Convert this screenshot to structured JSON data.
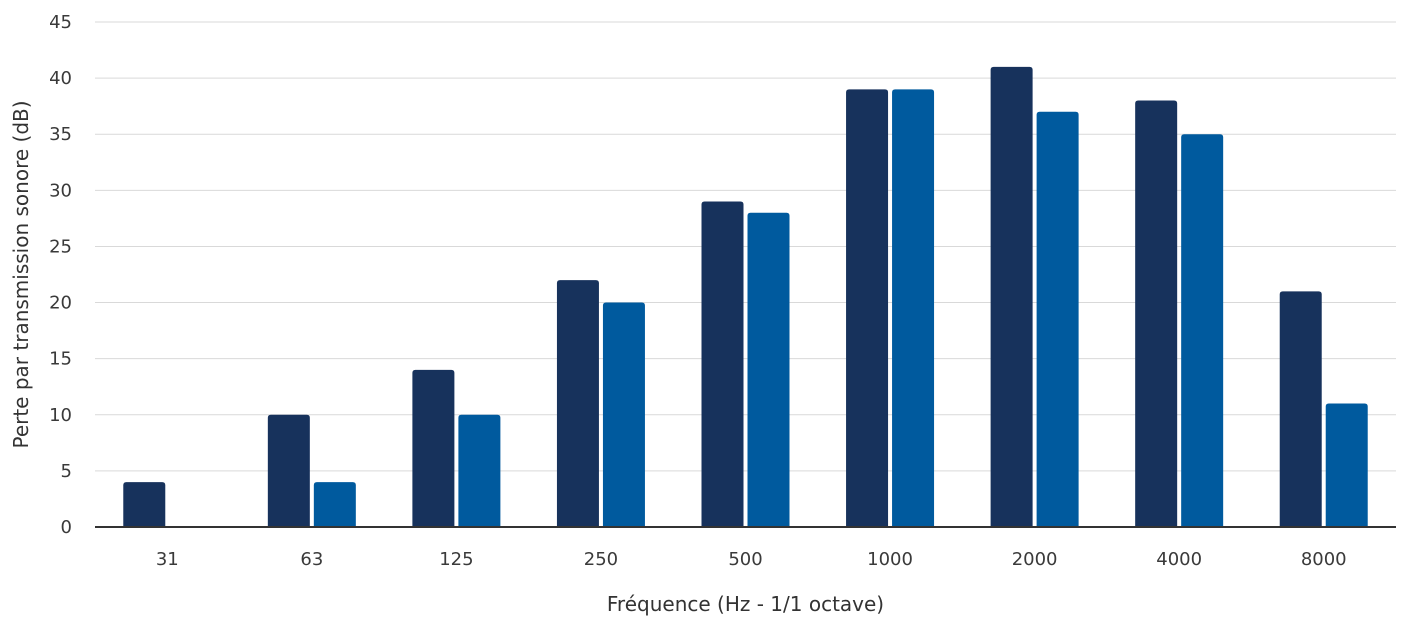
{
  "chart_data": {
    "type": "bar",
    "title": "",
    "xlabel": "Fréquence (Hz - 1/1 octave)",
    "ylabel": "Perte par transmission sonore (dB)",
    "categories": [
      "31",
      "63",
      "125",
      "250",
      "500",
      "1000",
      "2000",
      "4000",
      "8000"
    ],
    "series": [
      {
        "color": "#17325c",
        "values": [
          4,
          10,
          14,
          22,
          29,
          39,
          41,
          38,
          21
        ]
      },
      {
        "color": "#005a9e",
        "values": [
          0,
          4,
          10,
          20,
          28,
          39,
          37,
          35,
          11
        ]
      }
    ],
    "ylim": [
      0,
      45
    ],
    "yticks": [
      0,
      5,
      10,
      15,
      20,
      25,
      30,
      35,
      40,
      45
    ],
    "grid": true,
    "legend": "none"
  }
}
